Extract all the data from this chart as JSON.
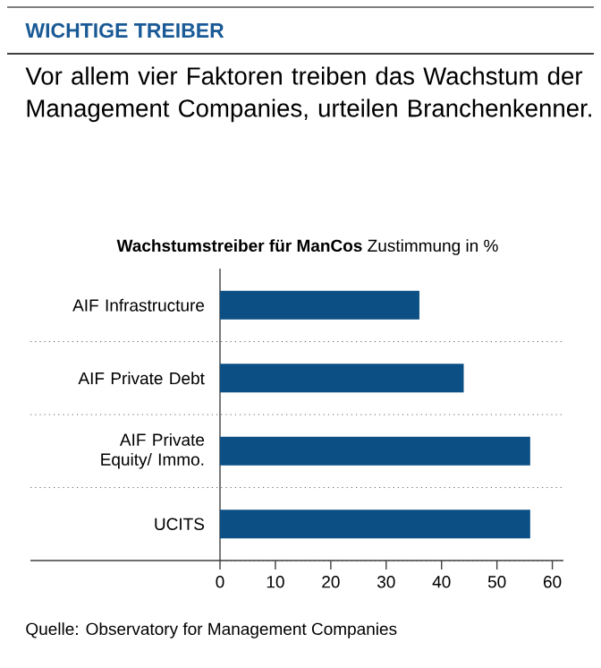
{
  "chart_data": {
    "type": "bar",
    "orientation": "horizontal",
    "title": "WICHTIGE TREIBER",
    "subtitle": "Vor allem vier Faktoren treiben das Wachstum der Management Companies, urteilen Branchenkenner.",
    "annotations": [
      "**Wachstumstreiber für ManCos** Zustimmung in %",
      "Quelle: Observatory for Management Companies"
    ],
    "categories": [
      "AIF Infrastructure",
      "AIF Private Debt",
      "AIF Private Equity/ Immo.",
      "UCITS"
    ],
    "values": [
      36,
      44,
      56,
      56
    ],
    "color": "#0b4f85",
    "xlim": [
      0,
      62
    ],
    "xticks": [
      0,
      10,
      20,
      30,
      40,
      50,
      60
    ]
  }
}
